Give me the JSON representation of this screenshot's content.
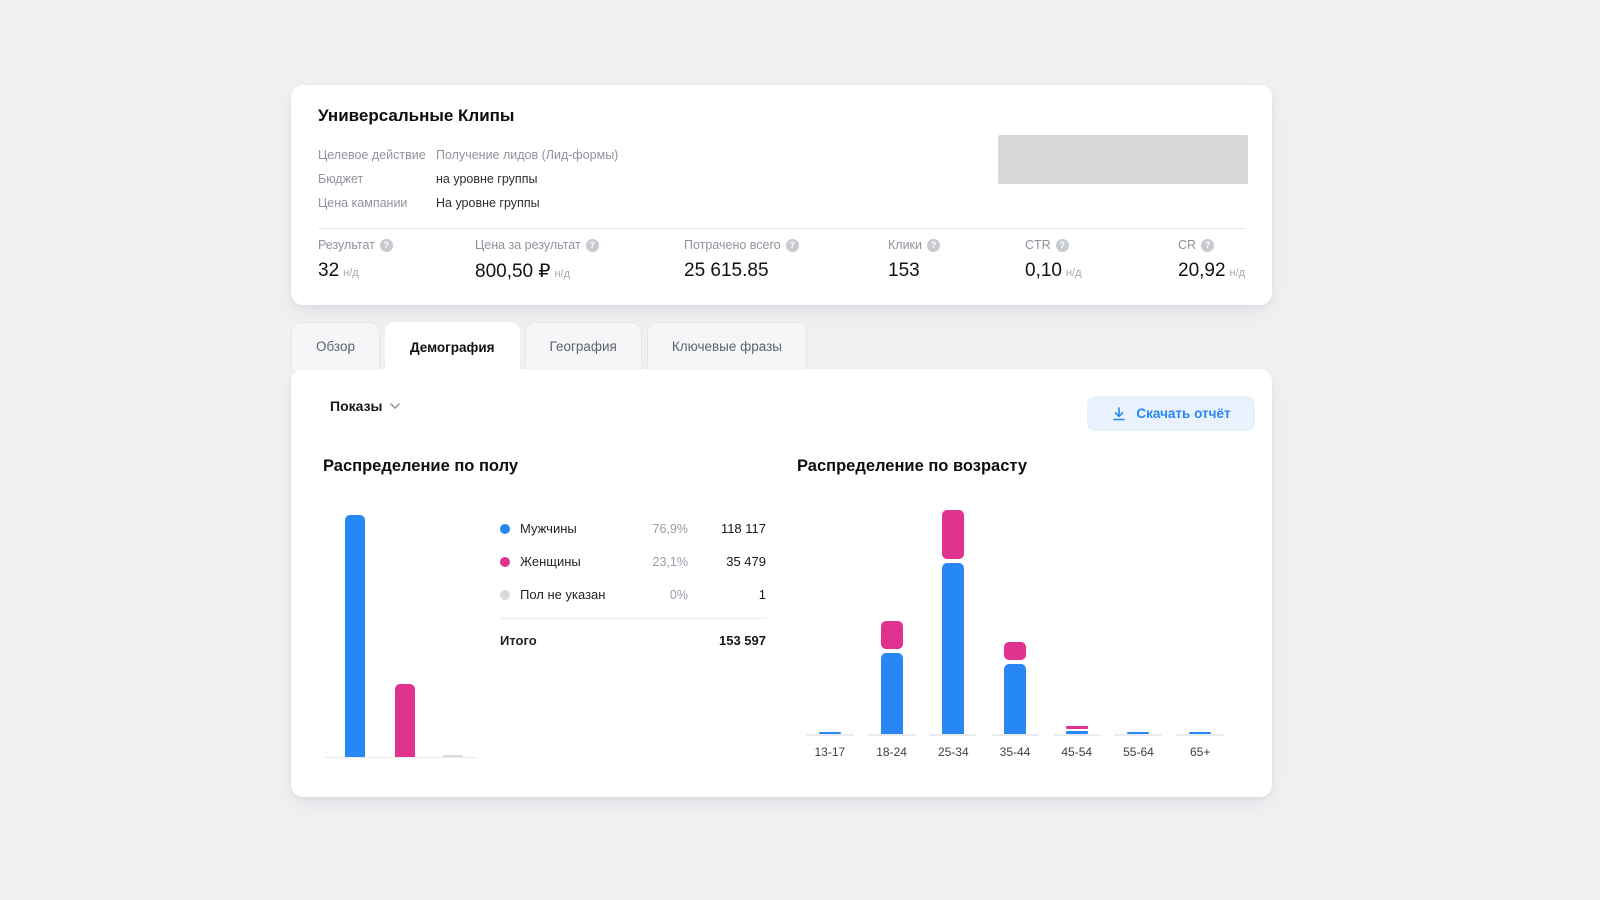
{
  "campaign": {
    "title": "Универсальные Клипы",
    "properties": [
      {
        "label": "Целевое действие",
        "value": "Получение лидов (Лид-формы)",
        "muted": true
      },
      {
        "label": "Бюджет",
        "value": "на уровне группы",
        "muted": false
      },
      {
        "label": "Цена кампании",
        "value": "На уровне группы",
        "muted": false
      }
    ],
    "stats": [
      {
        "label": "Результат",
        "value": "32",
        "suffix": "н/д"
      },
      {
        "label": "Цена за результат",
        "value": "800,50 ₽",
        "suffix": "н/д"
      },
      {
        "label": "Потрачено всего",
        "value": "25 615.85",
        "suffix": ""
      },
      {
        "label": "Клики",
        "value": "153",
        "suffix": ""
      },
      {
        "label": "CTR",
        "value": "0,10",
        "suffix": "н/д"
      },
      {
        "label": "CR",
        "value": "20,92",
        "suffix": "н/д"
      }
    ]
  },
  "tabs": [
    {
      "key": "overview",
      "label": "Обзор",
      "active": false
    },
    {
      "key": "demography",
      "label": "Демография",
      "active": true
    },
    {
      "key": "geography",
      "label": "География",
      "active": false
    },
    {
      "key": "keywords",
      "label": "Ключевые фразы",
      "active": false
    }
  ],
  "panel": {
    "metric_selector": "Показы",
    "download_button": "Скачать отчёт"
  },
  "icons": {
    "metric_selector": "chevron-down-icon",
    "download_button": "download-icon",
    "stat_help": "question-circle-icon"
  },
  "colors": {
    "male": "#2787f5",
    "female": "#e0338f",
    "unspecified": "#d8dadd",
    "accent": "#2787f5"
  },
  "chart_data": [
    {
      "type": "bar",
      "title": "Распределение по полу",
      "categories": [
        "Мужчины",
        "Женщины",
        "Пол не указан"
      ],
      "values": [
        118117,
        35479,
        1
      ],
      "legend": [
        {
          "label": "Мужчины",
          "percent": "76,9%",
          "value": "118 117",
          "color_key": "male"
        },
        {
          "label": "Женщины",
          "percent": "23,1%",
          "value": "35 479",
          "color_key": "female"
        },
        {
          "label": "Пол не указан",
          "percent": "0%",
          "value": "1",
          "color_key": "unspecified"
        }
      ],
      "total": {
        "label": "Итого",
        "value": "153 597"
      }
    },
    {
      "type": "stacked-bar",
      "title": "Распределение по возрасту",
      "categories": [
        "13-17",
        "18-24",
        "25-34",
        "35-44",
        "45-54",
        "55-64",
        "65+"
      ],
      "series": [
        {
          "name": "Мужчины",
          "color_key": "male",
          "values": [
            700,
            29000,
            61000,
            25000,
            1100,
            700,
            700
          ]
        },
        {
          "name": "Женщины",
          "color_key": "female",
          "values": [
            0,
            10000,
            17500,
            6500,
            1100,
            0,
            0
          ]
        }
      ],
      "ylim": [
        0,
        78500
      ],
      "legend_position": "none",
      "grid": false,
      "note": "values estimated from bar heights; axis not labeled in source"
    }
  ]
}
